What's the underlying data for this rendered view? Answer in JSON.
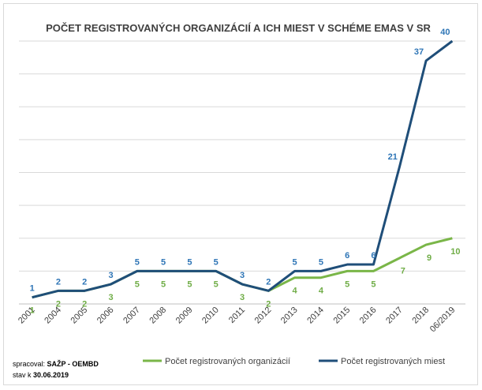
{
  "chart_data": {
    "type": "line",
    "title": "POČET REGISTROVANÝCH ORGANIZÁCIÍ A ICH MIEST V SCHÉME EMAS V SR",
    "xlabel": "",
    "ylabel": "",
    "categories": [
      "2001",
      "2004",
      "2005",
      "2006",
      "2007",
      "2008",
      "2009",
      "2010",
      "2011",
      "2012",
      "2013",
      "2014",
      "2015",
      "2016",
      "2017",
      "2018",
      "06/2019"
    ],
    "ylim": [
      0,
      40
    ],
    "grid": true,
    "legend_position": "bottom-right",
    "series": [
      {
        "name": "Počet registrovaných organizácií",
        "color": "#7ab648",
        "values": [
          1,
          2,
          2,
          3,
          5,
          5,
          5,
          5,
          3,
          2,
          4,
          4,
          5,
          5,
          7,
          9,
          10
        ]
      },
      {
        "name": "Počet registrovaných miest",
        "color": "#1f4e79",
        "values": [
          1,
          2,
          2,
          3,
          5,
          5,
          5,
          5,
          3,
          2,
          5,
          5,
          6,
          6,
          21,
          37,
          40
        ]
      }
    ]
  },
  "source": {
    "processed_label": "spracoval: ",
    "processed_by": "SAŽP - OEMBD",
    "state_label": "stav k ",
    "state_date": "30.06.2019"
  }
}
